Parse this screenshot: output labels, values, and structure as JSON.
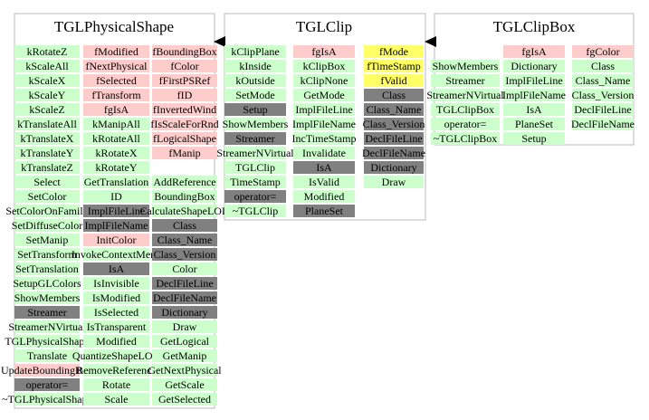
{
  "classes": [
    {
      "title": "TGLPhysicalShape",
      "columns": [
        [
          {
            "text": "kRotateZ",
            "color": "#ccffcc"
          },
          {
            "text": "kScaleAll",
            "color": "#ccffcc"
          },
          {
            "text": "kScaleX",
            "color": "#ccffcc"
          },
          {
            "text": "kScaleY",
            "color": "#ccffcc"
          },
          {
            "text": "kScaleZ",
            "color": "#ccffcc"
          },
          {
            "text": "kTranslateAll",
            "color": "#ccffcc"
          },
          {
            "text": "kTranslateX",
            "color": "#ccffcc"
          },
          {
            "text": "kTranslateY",
            "color": "#ccffcc"
          },
          {
            "text": "kTranslateZ",
            "color": "#ccffcc"
          },
          {
            "text": "Select",
            "color": "#ccffcc"
          },
          {
            "text": "SetColor",
            "color": "#ccffcc"
          },
          {
            "text": "SetColorOnFamily",
            "color": "#ccffcc"
          },
          {
            "text": "SetDiffuseColor",
            "color": "#ccffcc"
          },
          {
            "text": "SetManip",
            "color": "#ccffcc"
          },
          {
            "text": "SetTransform",
            "color": "#ccffcc"
          },
          {
            "text": "SetTranslation",
            "color": "#ccffcc"
          },
          {
            "text": "SetupGLColors",
            "color": "#ccffcc"
          },
          {
            "text": "ShowMembers",
            "color": "#ccffcc"
          },
          {
            "text": "Streamer",
            "color": "#808080"
          },
          {
            "text": "StreamerNVirtual",
            "color": "#ccffcc"
          },
          {
            "text": "TGLPhysicalShape",
            "color": "#ccffcc"
          },
          {
            "text": "Translate",
            "color": "#ccffcc"
          },
          {
            "text": "UpdateBoundingBox",
            "color": "#ffcccc"
          },
          {
            "text": "operator=",
            "color": "#808080"
          },
          {
            "text": "~TGLPhysicalShape",
            "color": "#ccffcc"
          }
        ],
        [
          {
            "text": "fModified",
            "color": "#ffcccc"
          },
          {
            "text": "fNextPhysical",
            "color": "#ffcccc"
          },
          {
            "text": "fSelected",
            "color": "#ffcccc"
          },
          {
            "text": "fTransform",
            "color": "#ffcccc"
          },
          {
            "text": "fgIsA",
            "color": "#ffcccc"
          },
          {
            "text": "kManipAll",
            "color": "#ccffcc"
          },
          {
            "text": "kRotateAll",
            "color": "#ccffcc"
          },
          {
            "text": "kRotateX",
            "color": "#ccffcc"
          },
          {
            "text": "kRotateY",
            "color": "#ccffcc"
          },
          {
            "text": "GetTranslation",
            "color": "#ccffcc"
          },
          {
            "text": "ID",
            "color": "#ccffcc"
          },
          {
            "text": "ImplFileLine",
            "color": "#808080"
          },
          {
            "text": "ImplFileName",
            "color": "#808080"
          },
          {
            "text": "InitColor",
            "color": "#ffcccc"
          },
          {
            "text": "InvokeContextMenu",
            "color": "#ccffcc"
          },
          {
            "text": "IsA",
            "color": "#808080"
          },
          {
            "text": "IsInvisible",
            "color": "#ccffcc"
          },
          {
            "text": "IsModified",
            "color": "#ccffcc"
          },
          {
            "text": "IsSelected",
            "color": "#ccffcc"
          },
          {
            "text": "IsTransparent",
            "color": "#ccffcc"
          },
          {
            "text": "Modified",
            "color": "#ccffcc"
          },
          {
            "text": "QuantizeShapeLOD",
            "color": "#ccffcc"
          },
          {
            "text": "RemoveReference",
            "color": "#ccffcc"
          },
          {
            "text": "Rotate",
            "color": "#ccffcc"
          },
          {
            "text": "Scale",
            "color": "#ccffcc"
          }
        ],
        [
          {
            "text": "fBoundingBox",
            "color": "#ffcccc"
          },
          {
            "text": "fColor",
            "color": "#ffcccc"
          },
          {
            "text": "fFirstPSRef",
            "color": "#ffcccc"
          },
          {
            "text": "fID",
            "color": "#ffcccc"
          },
          {
            "text": "fInvertedWind",
            "color": "#ffcccc"
          },
          {
            "text": "fIsScaleForRnd",
            "color": "#ffcccc"
          },
          {
            "text": "fLogicalShape",
            "color": "#ffcccc"
          },
          {
            "text": "fManip",
            "color": "#ffcccc"
          },
          null,
          {
            "text": "AddReference",
            "color": "#ccffcc"
          },
          {
            "text": "BoundingBox",
            "color": "#ccffcc"
          },
          {
            "text": "CalculateShapeLOD",
            "color": "#ccffcc"
          },
          {
            "text": "Class",
            "color": "#808080"
          },
          {
            "text": "Class_Name",
            "color": "#808080"
          },
          {
            "text": "Class_Version",
            "color": "#808080"
          },
          {
            "text": "Color",
            "color": "#ccffcc"
          },
          {
            "text": "DeclFileLine",
            "color": "#808080"
          },
          {
            "text": "DeclFileName",
            "color": "#808080"
          },
          {
            "text": "Dictionary",
            "color": "#808080"
          },
          {
            "text": "Draw",
            "color": "#ccffcc"
          },
          {
            "text": "GetLogical",
            "color": "#ccffcc"
          },
          {
            "text": "GetManip",
            "color": "#ccffcc"
          },
          {
            "text": "GetNextPhysical",
            "color": "#ccffcc"
          },
          {
            "text": "GetScale",
            "color": "#ccffcc"
          },
          {
            "text": "GetSelected",
            "color": "#ccffcc"
          }
        ]
      ]
    },
    {
      "title": "TGLClip",
      "columns": [
        [
          {
            "text": "kClipPlane",
            "color": "#ccffcc"
          },
          {
            "text": "kInside",
            "color": "#ccffcc"
          },
          {
            "text": "kOutside",
            "color": "#ccffcc"
          },
          {
            "text": "SetMode",
            "color": "#ccffcc"
          },
          {
            "text": "Setup",
            "color": "#808080"
          },
          {
            "text": "ShowMembers",
            "color": "#ccffcc"
          },
          {
            "text": "Streamer",
            "color": "#808080"
          },
          {
            "text": "StreamerNVirtual",
            "color": "#ccffcc"
          },
          {
            "text": "TGLClip",
            "color": "#ccffcc"
          },
          {
            "text": "TimeStamp",
            "color": "#ccffcc"
          },
          {
            "text": "operator=",
            "color": "#808080"
          },
          {
            "text": "~TGLClip",
            "color": "#ccffcc"
          }
        ],
        [
          {
            "text": "fgIsA",
            "color": "#ffcccc"
          },
          {
            "text": "kClipBox",
            "color": "#ccffcc"
          },
          {
            "text": "kClipNone",
            "color": "#ccffcc"
          },
          {
            "text": "GetMode",
            "color": "#ccffcc"
          },
          {
            "text": "ImplFileLine",
            "color": "#ccffcc"
          },
          {
            "text": "ImplFileName",
            "color": "#ccffcc"
          },
          {
            "text": "IncTimeStamp",
            "color": "#ccffcc"
          },
          {
            "text": "Invalidate",
            "color": "#ccffcc"
          },
          {
            "text": "IsA",
            "color": "#808080"
          },
          {
            "text": "IsValid",
            "color": "#ccffcc"
          },
          {
            "text": "Modified",
            "color": "#ccffcc"
          },
          {
            "text": "PlaneSet",
            "color": "#808080"
          }
        ],
        [
          {
            "text": "fMode",
            "color": "#ffff66"
          },
          {
            "text": "fTimeStamp",
            "color": "#ffff66"
          },
          {
            "text": "fValid",
            "color": "#ffff66"
          },
          {
            "text": "Class",
            "color": "#808080"
          },
          {
            "text": "Class_Name",
            "color": "#808080"
          },
          {
            "text": "Class_Version",
            "color": "#808080"
          },
          {
            "text": "DeclFileLine",
            "color": "#808080"
          },
          {
            "text": "DeclFileName",
            "color": "#808080"
          },
          {
            "text": "Dictionary",
            "color": "#808080"
          },
          {
            "text": "Draw",
            "color": "#ccffcc"
          }
        ]
      ]
    },
    {
      "title": "TGLClipBox",
      "columns": [
        [
          null,
          {
            "text": "ShowMembers",
            "color": "#ccffcc"
          },
          {
            "text": "Streamer",
            "color": "#ccffcc"
          },
          {
            "text": "StreamerNVirtual",
            "color": "#ccffcc"
          },
          {
            "text": "TGLClipBox",
            "color": "#ccffcc"
          },
          {
            "text": "operator=",
            "color": "#ccffcc"
          },
          {
            "text": "~TGLClipBox",
            "color": "#ccffcc"
          }
        ],
        [
          {
            "text": "fgIsA",
            "color": "#ffcccc"
          },
          {
            "text": "Dictionary",
            "color": "#ccffcc"
          },
          {
            "text": "ImplFileLine",
            "color": "#ccffcc"
          },
          {
            "text": "ImplFileName",
            "color": "#ccffcc"
          },
          {
            "text": "IsA",
            "color": "#ccffcc"
          },
          {
            "text": "PlaneSet",
            "color": "#ccffcc"
          },
          {
            "text": "Setup",
            "color": "#ccffcc"
          }
        ],
        [
          {
            "text": "fgColor",
            "color": "#ffcccc"
          },
          {
            "text": "Class",
            "color": "#ccffcc"
          },
          {
            "text": "Class_Name",
            "color": "#ccffcc"
          },
          {
            "text": "Class_Version",
            "color": "#ccffcc"
          },
          {
            "text": "DeclFileLine",
            "color": "#ccffcc"
          },
          {
            "text": "DeclFileName",
            "color": "#ccffcc"
          }
        ]
      ]
    }
  ]
}
